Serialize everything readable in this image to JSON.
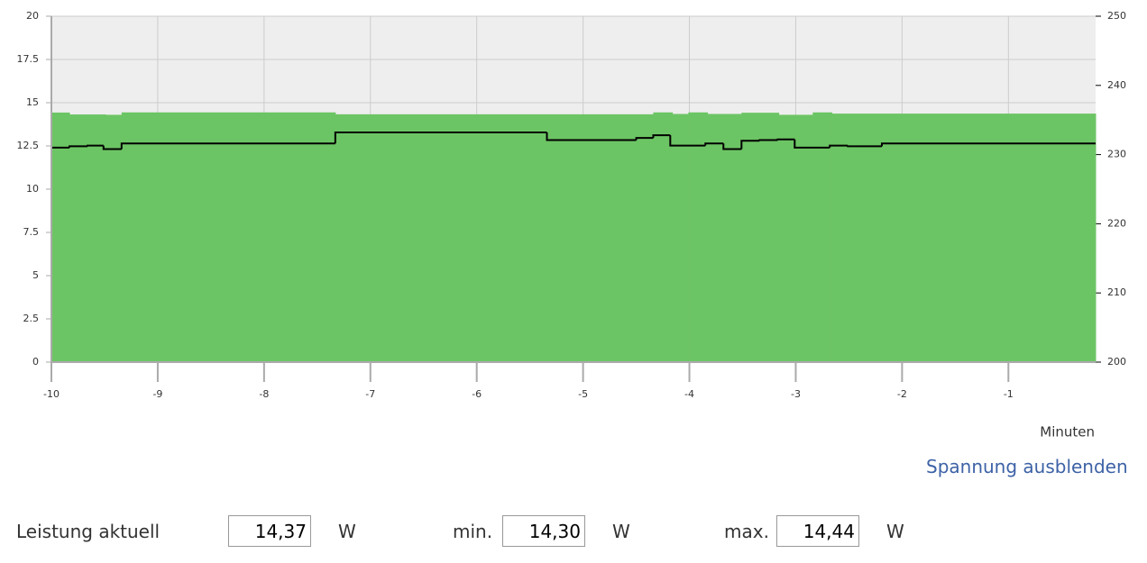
{
  "chart_data": {
    "type": "step",
    "x_label": "Minuten",
    "xlim": [
      -10,
      -0.18
    ],
    "xticks": [
      -10,
      -9,
      -8,
      -7,
      -6,
      -5,
      -4,
      -3,
      -2,
      -1
    ],
    "ylim": [
      0,
      20
    ],
    "yticks": [
      0,
      2.5,
      5,
      7.5,
      10,
      12.5,
      15,
      17.5,
      20
    ],
    "y2lim": [
      200,
      250
    ],
    "y2ticks": [
      200,
      210,
      220,
      230,
      240,
      250
    ],
    "grid": true,
    "series": [
      {
        "color": "#6cc564",
        "fill": true,
        "x": [
          -10,
          -9.83,
          -9.49,
          -9.34,
          -7.33,
          -4.34,
          -4.16,
          -4.01,
          -3.83,
          -3.51,
          -3.16,
          -2.84,
          -2.66
        ],
        "values": [
          14.43,
          14.32,
          14.3,
          14.44,
          14.33,
          14.44,
          14.35,
          14.44,
          14.35,
          14.42,
          14.3,
          14.44,
          14.37
        ]
      },
      {
        "color": "#000000",
        "axis": "y2",
        "x": [
          -10,
          -9.83,
          -9.66,
          -9.51,
          -9.34,
          -7.33,
          -5.34,
          -4.5,
          -4.34,
          -4.18,
          -3.85,
          -3.68,
          -3.51,
          -3.34,
          -3.17,
          -3.01,
          -2.68,
          -2.51,
          -2.19
        ],
        "values": [
          231.0,
          231.2,
          231.3,
          230.8,
          231.6,
          233.2,
          232.1,
          232.4,
          232.8,
          231.3,
          231.6,
          230.8,
          232.0,
          232.1,
          232.2,
          231.0,
          231.3,
          231.2,
          231.6
        ]
      }
    ]
  },
  "toggle_link": "Spannung ausblenden",
  "readings": {
    "current": {
      "label": "Leistung aktuell",
      "value": "14,37",
      "unit": "W"
    },
    "min": {
      "label": "min.",
      "value": "14,30",
      "unit": "W"
    },
    "max": {
      "label": "max.",
      "value": "14,44",
      "unit": "W"
    }
  }
}
